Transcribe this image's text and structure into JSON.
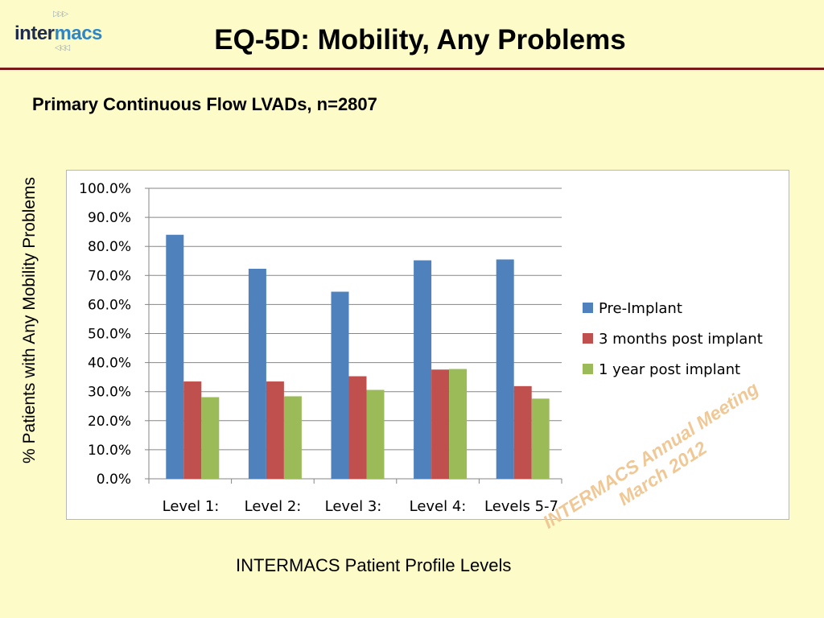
{
  "logo": {
    "text_a": "inter",
    "text_b": "macs"
  },
  "slide": {
    "title": "EQ-5D:  Mobility, Any Problems",
    "subtitle": "Primary Continuous Flow LVADs, n=2807",
    "y_axis_title": "% Patients with Any Mobility Problems",
    "x_axis_title": "INTERMACS Patient Profile Levels"
  },
  "watermark": {
    "line1": "INTERMACS Annual Meeting",
    "line2": "March 2012"
  },
  "colors": {
    "series": [
      "#4f81bd",
      "#c0504d",
      "#9bbb59"
    ],
    "background": "#fdfbc8",
    "rule": "#7a1a1a"
  },
  "chart_data": {
    "type": "bar",
    "categories": [
      "Level 1:",
      "Level 2:",
      "Level 3:",
      "Level 4:",
      "Levels 5-7"
    ],
    "series": [
      {
        "name": "Pre-Implant",
        "values": [
          84.0,
          72.3,
          64.4,
          75.2,
          75.5
        ]
      },
      {
        "name": "3 months post implant",
        "values": [
          33.5,
          33.5,
          35.3,
          37.6,
          31.9
        ]
      },
      {
        "name": "1 year post implant",
        "values": [
          28.1,
          28.4,
          30.6,
          37.8,
          27.6
        ]
      }
    ],
    "ylim": [
      0,
      100
    ],
    "y_ticks": [
      "0.0%",
      "10.0%",
      "20.0%",
      "30.0%",
      "40.0%",
      "50.0%",
      "60.0%",
      "70.0%",
      "80.0%",
      "90.0%",
      "100.0%"
    ],
    "grid": true,
    "legend_position": "right"
  }
}
